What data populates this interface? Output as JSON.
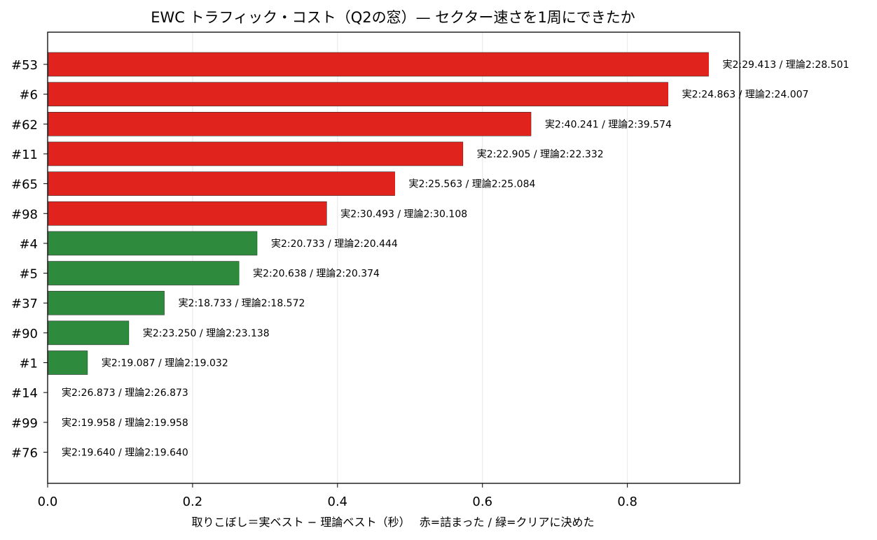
{
  "chart_data": {
    "type": "bar",
    "orientation": "horizontal",
    "title": "EWC トラフィック・コスト（Q2の窓）— セクター速さを1周にできたか",
    "xlabel": "取りこぼし＝実ベスト − 理論ベスト（秒）　 赤=詰まった / 緑=クリアに決めた",
    "ylabel": "",
    "xlim": [
      0,
      0.955
    ],
    "xticks": [
      0.0,
      0.2,
      0.4,
      0.6,
      0.8
    ],
    "xtick_labels": [
      "0.0",
      "0.2",
      "0.4",
      "0.6",
      "0.8"
    ],
    "grid": "vertical",
    "categories": [
      "#53",
      "#6",
      "#62",
      "#11",
      "#65",
      "#98",
      "#4",
      "#5",
      "#37",
      "#90",
      "#1",
      "#14",
      "#99",
      "#76"
    ],
    "values": [
      0.912,
      0.856,
      0.667,
      0.573,
      0.479,
      0.385,
      0.289,
      0.264,
      0.161,
      0.112,
      0.055,
      0.0,
      0.0,
      0.0
    ],
    "status": [
      "jammed",
      "jammed",
      "jammed",
      "jammed",
      "jammed",
      "jammed",
      "clear",
      "clear",
      "clear",
      "clear",
      "clear",
      "clear",
      "clear",
      "clear"
    ],
    "bar_labels": [
      "実2:29.413 / 理論2:28.501",
      "実2:24.863 / 理論2:24.007",
      "実2:40.241 / 理論2:39.574",
      "実2:22.905 / 理論2:22.332",
      "実2:25.563 / 理論2:25.084",
      "実2:30.493 / 理論2:30.108",
      "実2:20.733 / 理論2:20.444",
      "実2:20.638 / 理論2:20.374",
      "実2:18.733 / 理論2:18.572",
      "実2:23.250 / 理論2:23.138",
      "実2:19.087 / 理論2:19.032",
      "実2:26.873 / 理論2:26.873",
      "実2:19.958 / 理論2:19.958",
      "実2:19.640 / 理論2:19.640"
    ],
    "colors": {
      "jammed": "#e0231c",
      "clear": "#2e8b3e",
      "grid": "#e6e6e6",
      "axis": "#000000"
    }
  }
}
